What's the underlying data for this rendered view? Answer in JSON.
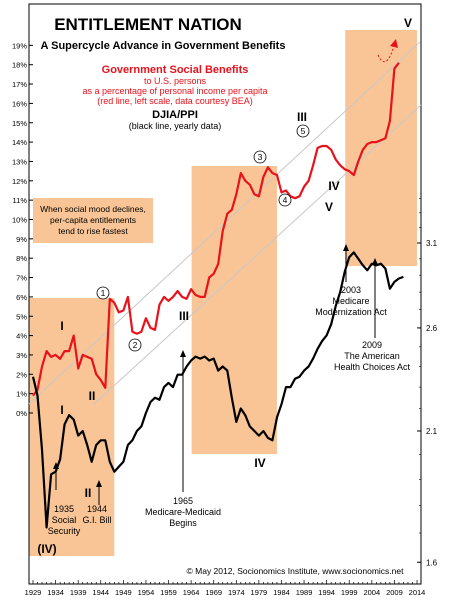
{
  "chart_data": {
    "type": "line",
    "title": "ENTITLEMENT NATION",
    "subtitle": "A Supercycle Advance in Government Benefits",
    "x_range": [
      1929,
      2014
    ],
    "x_ticks": [
      "1929",
      "1934",
      "1939",
      "1944",
      "1949",
      "1954",
      "1959",
      "1964",
      "1969",
      "1974",
      "1979",
      "1984",
      "1989",
      "1994",
      "1999",
      "2004",
      "2009",
      "2014"
    ],
    "left_axis": {
      "ticks": [
        "19%",
        "18%",
        "17%",
        "16%",
        "15%",
        "14%",
        "13%",
        "12%",
        "11%",
        "10%",
        "9%",
        "8%",
        "7%",
        "6%",
        "5%",
        "4%",
        "3%",
        "2%",
        "1%",
        "0%"
      ],
      "tick_values": [
        19,
        18,
        17,
        16,
        15,
        14,
        13,
        12,
        11,
        10,
        9,
        8,
        7,
        6,
        5,
        4,
        3,
        2,
        1,
        0
      ],
      "range": [
        0,
        19.7
      ]
    },
    "right_axis": {
      "scale": "log",
      "ticks": [
        "3.1",
        "2.6",
        "2.1",
        "1.6"
      ],
      "tick_values": [
        3.1,
        2.6,
        2.1,
        1.6
      ],
      "range": [
        1.52,
        3.5
      ]
    },
    "series": [
      {
        "name": "Government Social Benefits",
        "color": "#e8121b",
        "x": [
          1929,
          1930,
          1931,
          1932,
          1933,
          1934,
          1935,
          1936,
          1937,
          1938,
          1939,
          1940,
          1941,
          1942,
          1943,
          1944,
          1945,
          1946,
          1947,
          1948,
          1949,
          1950,
          1951,
          1952,
          1953,
          1954,
          1955,
          1956,
          1957,
          1958,
          1959,
          1960,
          1961,
          1962,
          1963,
          1964,
          1965,
          1966,
          1967,
          1968,
          1969,
          1970,
          1971,
          1972,
          1973,
          1974,
          1975,
          1976,
          1977,
          1978,
          1979,
          1980,
          1981,
          1982,
          1983,
          1984,
          1985,
          1986,
          1987,
          1988,
          1989,
          1990,
          1991,
          1992,
          1993,
          1994,
          1995,
          1996,
          1997,
          1998,
          1999,
          2000,
          2001,
          2002,
          2003,
          2004,
          2005,
          2006,
          2007,
          2008,
          2009,
          2010
        ],
        "y": [
          0.9,
          1.2,
          2.4,
          3.2,
          2.9,
          3.0,
          2.8,
          3.2,
          3.2,
          4.0,
          2.3,
          3.0,
          2.9,
          2.8,
          2.0,
          1.7,
          1.3,
          5.9,
          5.7,
          5.2,
          5.3,
          6.0,
          4.2,
          4.1,
          4.2,
          4.9,
          4.4,
          4.3,
          5.6,
          6.0,
          5.8,
          6.0,
          6.3,
          6.0,
          5.9,
          6.4,
          6.1,
          6.0,
          6.0,
          7.0,
          7.2,
          7.7,
          9.4,
          10.3,
          10.5,
          11.3,
          12.4,
          12.0,
          11.8,
          11.3,
          11.2,
          12.2,
          12.7,
          12.4,
          12.3,
          11.4,
          11.5,
          11.2,
          11.1,
          11.2,
          11.7,
          12.0,
          12.8,
          13.7,
          13.8,
          13.8,
          13.6,
          13.1,
          12.8,
          12.6,
          12.5,
          12.3,
          13.0,
          13.6,
          13.9,
          14.0,
          14.0,
          14.1,
          14.2,
          15.1,
          17.8,
          18.1
        ],
        "axis": "left"
      },
      {
        "name": "DJIA/PPI",
        "color": "#000000",
        "x": [
          1929,
          1930,
          1931,
          1932,
          1933,
          1934,
          1935,
          1936,
          1937,
          1938,
          1939,
          1940,
          1941,
          1942,
          1943,
          1944,
          1945,
          1946,
          1947,
          1948,
          1949,
          1950,
          1951,
          1952,
          1953,
          1954,
          1955,
          1956,
          1957,
          1958,
          1959,
          1960,
          1961,
          1962,
          1963,
          1964,
          1965,
          1966,
          1967,
          1968,
          1969,
          1970,
          1971,
          1972,
          1973,
          1974,
          1975,
          1976,
          1977,
          1978,
          1979,
          1980,
          1981,
          1982,
          1983,
          1984,
          1985,
          1986,
          1987,
          1988,
          1989,
          1990,
          1991,
          1992,
          1993,
          1994,
          1995,
          1996,
          1997,
          1998,
          1999,
          2000,
          2001,
          2002,
          2003,
          2004,
          2005,
          2006,
          2007,
          2008,
          2009,
          2010,
          2011
        ],
        "y": [
          2.35,
          2.26,
          2.02,
          1.72,
          1.92,
          1.93,
          1.98,
          2.13,
          2.17,
          2.15,
          2.08,
          2.1,
          2.04,
          1.97,
          2.04,
          2.06,
          2.06,
          1.97,
          1.93,
          1.95,
          1.97,
          2.04,
          2.06,
          2.1,
          2.12,
          2.18,
          2.23,
          2.25,
          2.24,
          2.3,
          2.32,
          2.3,
          2.36,
          2.36,
          2.4,
          2.43,
          2.45,
          2.44,
          2.45,
          2.43,
          2.44,
          2.38,
          2.4,
          2.38,
          2.25,
          2.14,
          2.2,
          2.17,
          2.12,
          2.1,
          2.08,
          2.1,
          2.07,
          2.06,
          2.16,
          2.22,
          2.3,
          2.3,
          2.34,
          2.35,
          2.38,
          2.4,
          2.44,
          2.49,
          2.53,
          2.56,
          2.62,
          2.72,
          2.8,
          2.92,
          3.01,
          3.04,
          3.0,
          2.96,
          2.93,
          2.97,
          2.96,
          2.97,
          2.94,
          2.82,
          2.86,
          2.88,
          2.89
        ],
        "axis": "right"
      }
    ],
    "shaded_years": [
      [
        1929,
        1947
      ],
      [
        1965,
        1983
      ],
      [
        1999,
        2014
      ]
    ]
  },
  "legend": {
    "red_title": "Government Social Benefits",
    "red_lines": [
      "to U.S. persons",
      "as a percentage of personal income per capita",
      "(red line, left scale, data courtesy BEA)"
    ],
    "black_title": "DJIA/PPI",
    "black_sub": "(black line, yearly data)"
  },
  "note_box": [
    "When social mood declines,",
    "per-capita entitlements",
    "tend to rise fastest"
  ],
  "wave_labels": {
    "I_top": "I",
    "II_top": "II",
    "III_top": "III",
    "IV_top": "IV",
    "V_top": "V",
    "I_bottom": "I",
    "II_bottom": "II",
    "III_bottom": "III",
    "IV_bottom": "IV",
    "V_bottom": "V",
    "IV_paren": "(IV)",
    "c1": "1",
    "c2": "2",
    "c3": "3",
    "c4": "4",
    "c5": "5"
  },
  "annotations": {
    "a1935": [
      "1935",
      "Social",
      "Security"
    ],
    "a1944": [
      "1944",
      "G.I. Bill"
    ],
    "a1965": [
      "1965",
      "Medicare-Medicaid",
      "Begins"
    ],
    "a2003": [
      "2003",
      "Medicare",
      "Modernization Act"
    ],
    "a2009": [
      "2009",
      "The American",
      "Health Choices Act"
    ]
  },
  "copyright": "© May 2012, Socionomics Institute, www.socionomics.net",
  "colors": {
    "shade": "#f9c596",
    "red": "#e8121b",
    "black": "#000000",
    "channel": "#c8c8c8"
  }
}
